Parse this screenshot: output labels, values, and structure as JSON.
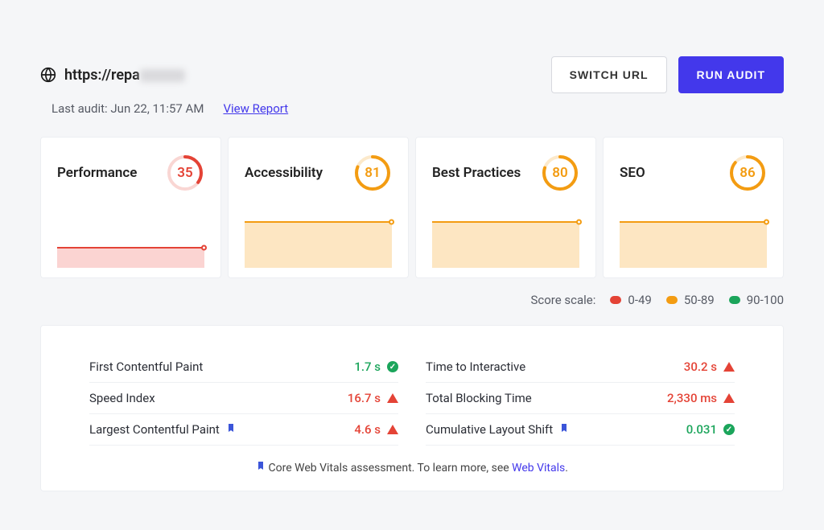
{
  "header": {
    "url_prefix": "https://repa",
    "switch_label": "SWITCH URL",
    "run_label": "RUN AUDIT",
    "last_audit": "Last audit: Jun 22, 11:57 AM",
    "view_report": "View Report"
  },
  "colors": {
    "accent": "#4338eb",
    "red": "#e44336",
    "orange": "#f39c12",
    "green": "#1ba55b",
    "red_fill": "#fbd4d2",
    "orange_fill": "#fde6c2",
    "card_border": "#eceef2",
    "bg": "#f5f6f8"
  },
  "cards": [
    {
      "title": "Performance",
      "score": 35,
      "color": "#e44336",
      "fill": "#fbd4d2",
      "spark_h": 24
    },
    {
      "title": "Accessibility",
      "score": 81,
      "color": "#f39c12",
      "fill": "#fde6c2",
      "spark_h": 56
    },
    {
      "title": "Best Practices",
      "score": 80,
      "color": "#f39c12",
      "fill": "#fde6c2",
      "spark_h": 56
    },
    {
      "title": "SEO",
      "score": 86,
      "color": "#f39c12",
      "fill": "#fde6c2",
      "spark_h": 56
    }
  ],
  "scale": {
    "label": "Score scale:",
    "items": [
      {
        "color": "#e44336",
        "label": "0-49"
      },
      {
        "color": "#f39c12",
        "label": "50-89"
      },
      {
        "color": "#1ba55b",
        "label": "90-100"
      }
    ]
  },
  "metrics": {
    "left": [
      {
        "label": "First Contentful Paint",
        "value": "1.7 s",
        "status": "ok",
        "color": "#1ba55b",
        "bookmark": false
      },
      {
        "label": "Speed Index",
        "value": "16.7 s",
        "status": "warn",
        "color": "#e44336",
        "bookmark": false
      },
      {
        "label": "Largest Contentful Paint",
        "value": "4.6 s",
        "status": "warn",
        "color": "#e44336",
        "bookmark": true
      }
    ],
    "right": [
      {
        "label": "Time to Interactive",
        "value": "30.2 s",
        "status": "warn",
        "color": "#e44336",
        "bookmark": false
      },
      {
        "label": "Total Blocking Time",
        "value": "2,330 ms",
        "status": "warn",
        "color": "#e44336",
        "bookmark": false
      },
      {
        "label": "Cumulative Layout Shift",
        "value": "0.031",
        "status": "ok",
        "color": "#1ba55b",
        "bookmark": true
      }
    ]
  },
  "footer": {
    "prefix": "Core Web Vitals assessment. To learn more, see ",
    "link": "Web Vitals",
    "suffix": "."
  }
}
